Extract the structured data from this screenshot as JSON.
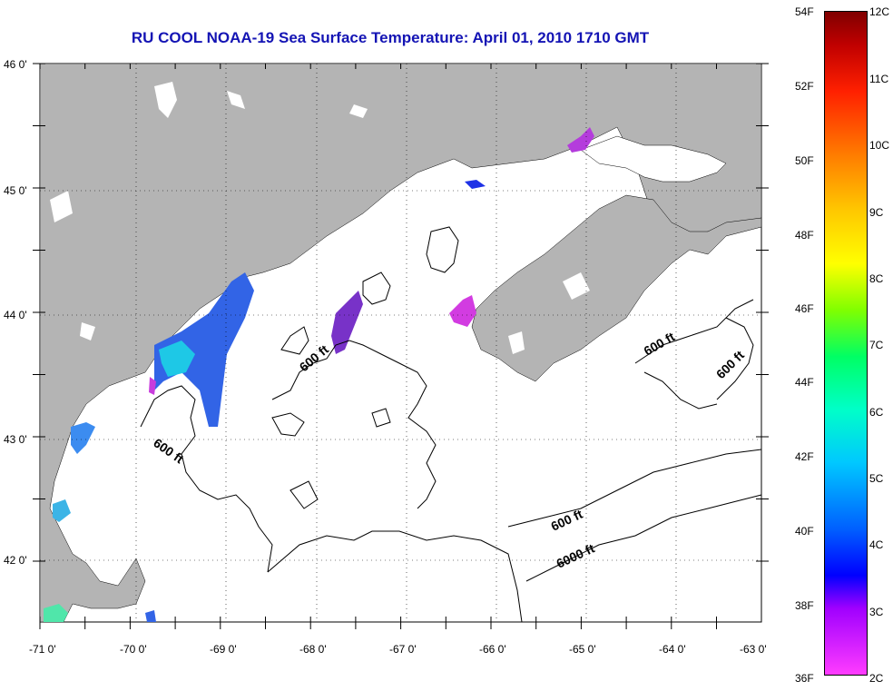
{
  "title": "RU COOL  NOAA-19  Sea Surface Temperature:  April 01, 2010 1710 GMT",
  "axes": {
    "lat_labels": [
      "46 0'",
      "45 0'",
      "44 0'",
      "43 0'",
      "42 0'"
    ],
    "lon_labels": [
      "-71 0'",
      "-70 0'",
      "-69 0'",
      "-68 0'",
      "-67 0'",
      "-66 0'",
      "-65 0'",
      "-64 0'",
      "-63 0'"
    ]
  },
  "contour_labels": [
    "600 ft",
    "600 ft",
    "600 ft",
    "600 ft",
    "600 ft",
    "6000 ft"
  ],
  "colorbar": {
    "fahrenheit": [
      "54F",
      "52F",
      "50F",
      "48F",
      "46F",
      "44F",
      "42F",
      "40F",
      "38F",
      "36F"
    ],
    "celsius": [
      "12C",
      "11C",
      "10C",
      "9C",
      "8C",
      "7C",
      "6C",
      "5C",
      "4C",
      "3C",
      "2C"
    ]
  },
  "colors": {
    "land": "#b4b4b4",
    "water": "#ffffff",
    "title": "#1414b4"
  }
}
